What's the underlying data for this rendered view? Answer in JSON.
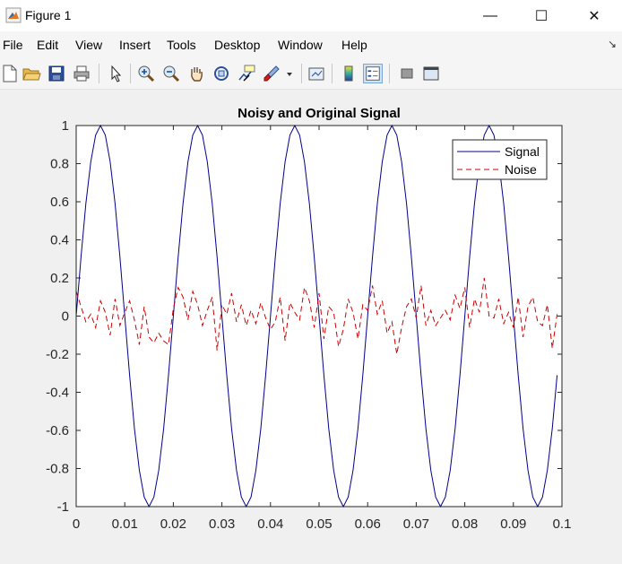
{
  "window": {
    "title": "Figure 1",
    "controls": {
      "minimize": "—",
      "maximize": "☐",
      "close": "✕"
    }
  },
  "menu": [
    "File",
    "Edit",
    "View",
    "Insert",
    "Tools",
    "Desktop",
    "Window",
    "Help"
  ],
  "toolbar": {
    "buttons": [
      "new-figure-icon",
      "open-file-icon",
      "save-icon",
      "print-icon",
      "edit-plot-arrow-icon",
      "zoom-in-icon",
      "zoom-out-icon",
      "pan-hand-icon",
      "rotate-3d-icon",
      "data-cursor-icon",
      "brush-icon",
      "brush-dropdown-icon",
      "link-plot-icon",
      "insert-colorbar-icon",
      "insert-legend-icon",
      "hide-plot-tools-icon",
      "show-plot-tools-icon"
    ]
  },
  "colors": {
    "signal": "#00008b",
    "noise": "#cc0000",
    "accent": "#0078d4"
  },
  "chart_data": {
    "type": "line",
    "title": "Noisy and Original Signal",
    "xlabel": "",
    "ylabel": "",
    "xlim": [
      0,
      0.1
    ],
    "ylim": [
      -1,
      1
    ],
    "xticks": [
      "0",
      "0.01",
      "0.02",
      "0.03",
      "0.04",
      "0.05",
      "0.06",
      "0.07",
      "0.08",
      "0.09",
      "0.1"
    ],
    "yticks": [
      "1",
      "0.8",
      "0.6",
      "0.4",
      "0.2",
      "0",
      "-0.2",
      "-0.4",
      "-0.6",
      "-0.8",
      "-1"
    ],
    "grid": false,
    "legend": {
      "position": "top-right",
      "entries": [
        "Signal",
        "Noise"
      ]
    },
    "series": [
      {
        "name": "Signal",
        "style": "solid",
        "x": [
          0,
          0.001,
          0.002,
          0.003,
          0.004,
          0.005,
          0.006,
          0.007,
          0.008,
          0.009,
          0.01,
          0.011,
          0.012,
          0.013,
          0.014,
          0.015,
          0.016,
          0.017,
          0.018,
          0.019,
          0.02,
          0.021,
          0.022,
          0.023,
          0.024,
          0.025,
          0.026,
          0.027,
          0.028,
          0.029,
          0.03,
          0.031,
          0.032,
          0.033,
          0.034,
          0.035,
          0.036,
          0.037,
          0.038,
          0.039,
          0.04,
          0.041,
          0.042,
          0.043,
          0.044,
          0.045,
          0.046,
          0.047,
          0.048,
          0.049,
          0.05,
          0.051,
          0.052,
          0.053,
          0.054,
          0.055,
          0.056,
          0.057,
          0.058,
          0.059,
          0.06,
          0.061,
          0.062,
          0.063,
          0.064,
          0.065,
          0.066,
          0.067,
          0.068,
          0.069,
          0.07,
          0.071,
          0.072,
          0.073,
          0.074,
          0.075,
          0.076,
          0.077,
          0.078,
          0.079,
          0.08,
          0.081,
          0.082,
          0.083,
          0.084,
          0.085,
          0.086,
          0.087,
          0.088,
          0.089,
          0.09,
          0.091,
          0.092,
          0.093,
          0.094,
          0.095,
          0.096,
          0.097,
          0.098,
          0.099
        ],
        "y": [
          0,
          0.31,
          0.59,
          0.81,
          0.95,
          1,
          0.95,
          0.81,
          0.59,
          0.31,
          0,
          -0.31,
          -0.59,
          -0.81,
          -0.95,
          -1,
          -0.95,
          -0.81,
          -0.59,
          -0.31,
          0,
          0.31,
          0.59,
          0.81,
          0.95,
          1,
          0.95,
          0.81,
          0.59,
          0.31,
          0,
          -0.31,
          -0.59,
          -0.81,
          -0.95,
          -1,
          -0.95,
          -0.81,
          -0.59,
          -0.31,
          0,
          0.31,
          0.59,
          0.81,
          0.95,
          1,
          0.95,
          0.81,
          0.59,
          0.31,
          0,
          -0.31,
          -0.59,
          -0.81,
          -0.95,
          -1,
          -0.95,
          -0.81,
          -0.59,
          -0.31,
          0,
          0.31,
          0.59,
          0.81,
          0.95,
          1,
          0.95,
          0.81,
          0.59,
          0.31,
          0,
          -0.31,
          -0.59,
          -0.81,
          -0.95,
          -1,
          -0.95,
          -0.81,
          -0.59,
          -0.31,
          0,
          0.31,
          0.59,
          0.81,
          0.95,
          1,
          0.95,
          0.81,
          0.59,
          0.31,
          0,
          -0.31,
          -0.59,
          -0.81,
          -0.95,
          -1,
          -0.95,
          -0.81,
          -0.59,
          -0.31
        ]
      },
      {
        "name": "Noise",
        "style": "dashed",
        "x": [
          0,
          0.001,
          0.002,
          0.003,
          0.004,
          0.005,
          0.006,
          0.007,
          0.008,
          0.009,
          0.01,
          0.011,
          0.012,
          0.013,
          0.014,
          0.015,
          0.016,
          0.017,
          0.018,
          0.019,
          0.02,
          0.021,
          0.022,
          0.023,
          0.024,
          0.025,
          0.026,
          0.027,
          0.028,
          0.029,
          0.03,
          0.031,
          0.032,
          0.033,
          0.034,
          0.035,
          0.036,
          0.037,
          0.038,
          0.039,
          0.04,
          0.041,
          0.042,
          0.043,
          0.044,
          0.045,
          0.046,
          0.047,
          0.048,
          0.049,
          0.05,
          0.051,
          0.052,
          0.053,
          0.054,
          0.055,
          0.056,
          0.057,
          0.058,
          0.059,
          0.06,
          0.061,
          0.062,
          0.063,
          0.064,
          0.065,
          0.066,
          0.067,
          0.068,
          0.069,
          0.07,
          0.071,
          0.072,
          0.073,
          0.074,
          0.075,
          0.076,
          0.077,
          0.078,
          0.079,
          0.08,
          0.081,
          0.082,
          0.083,
          0.084,
          0.085,
          0.086,
          0.087,
          0.088,
          0.089,
          0.09,
          0.091,
          0.092,
          0.093,
          0.094,
          0.095,
          0.096,
          0.097,
          0.098,
          0.099
        ],
        "y": [
          0.13,
          0.05,
          -0.03,
          0.01,
          -0.06,
          0.08,
          0.02,
          -0.1,
          0.09,
          -0.05,
          0.02,
          0.08,
          -0.02,
          -0.15,
          0.05,
          -0.11,
          -0.14,
          -0.09,
          -0.13,
          -0.15,
          0.04,
          0.15,
          0.1,
          -0.02,
          0.13,
          0.06,
          -0.05,
          0.03,
          0.1,
          -0.18,
          0.06,
          0.01,
          0.12,
          -0.03,
          0.06,
          -0.05,
          0.03,
          -0.04,
          0.07,
          -0.01,
          -0.07,
          -0.03,
          0.1,
          -0.13,
          0.07,
          0.02,
          -0.02,
          0.15,
          0.08,
          -0.06,
          0.12,
          -0.12,
          0.05,
          0.02,
          -0.16,
          -0.07,
          0.09,
          0.02,
          -0.12,
          0.06,
          0.03,
          0.16,
          0.01,
          0.08,
          -0.09,
          -0.03,
          -0.2,
          -0.06,
          0.05,
          0.09,
          -0.01,
          0.16,
          -0.05,
          0.03,
          -0.05,
          -0.01,
          0.03,
          -0.02,
          0.11,
          0.04,
          0.15,
          -0.06,
          0.09,
          0.02,
          0.2,
          0.0,
          -0.01,
          0.09,
          -0.04,
          0.02,
          -0.06,
          0.1,
          -0.11,
          0.05,
          0.1,
          -0.03,
          -0.05,
          0.06,
          -0.17,
          0.01
        ]
      }
    ]
  }
}
